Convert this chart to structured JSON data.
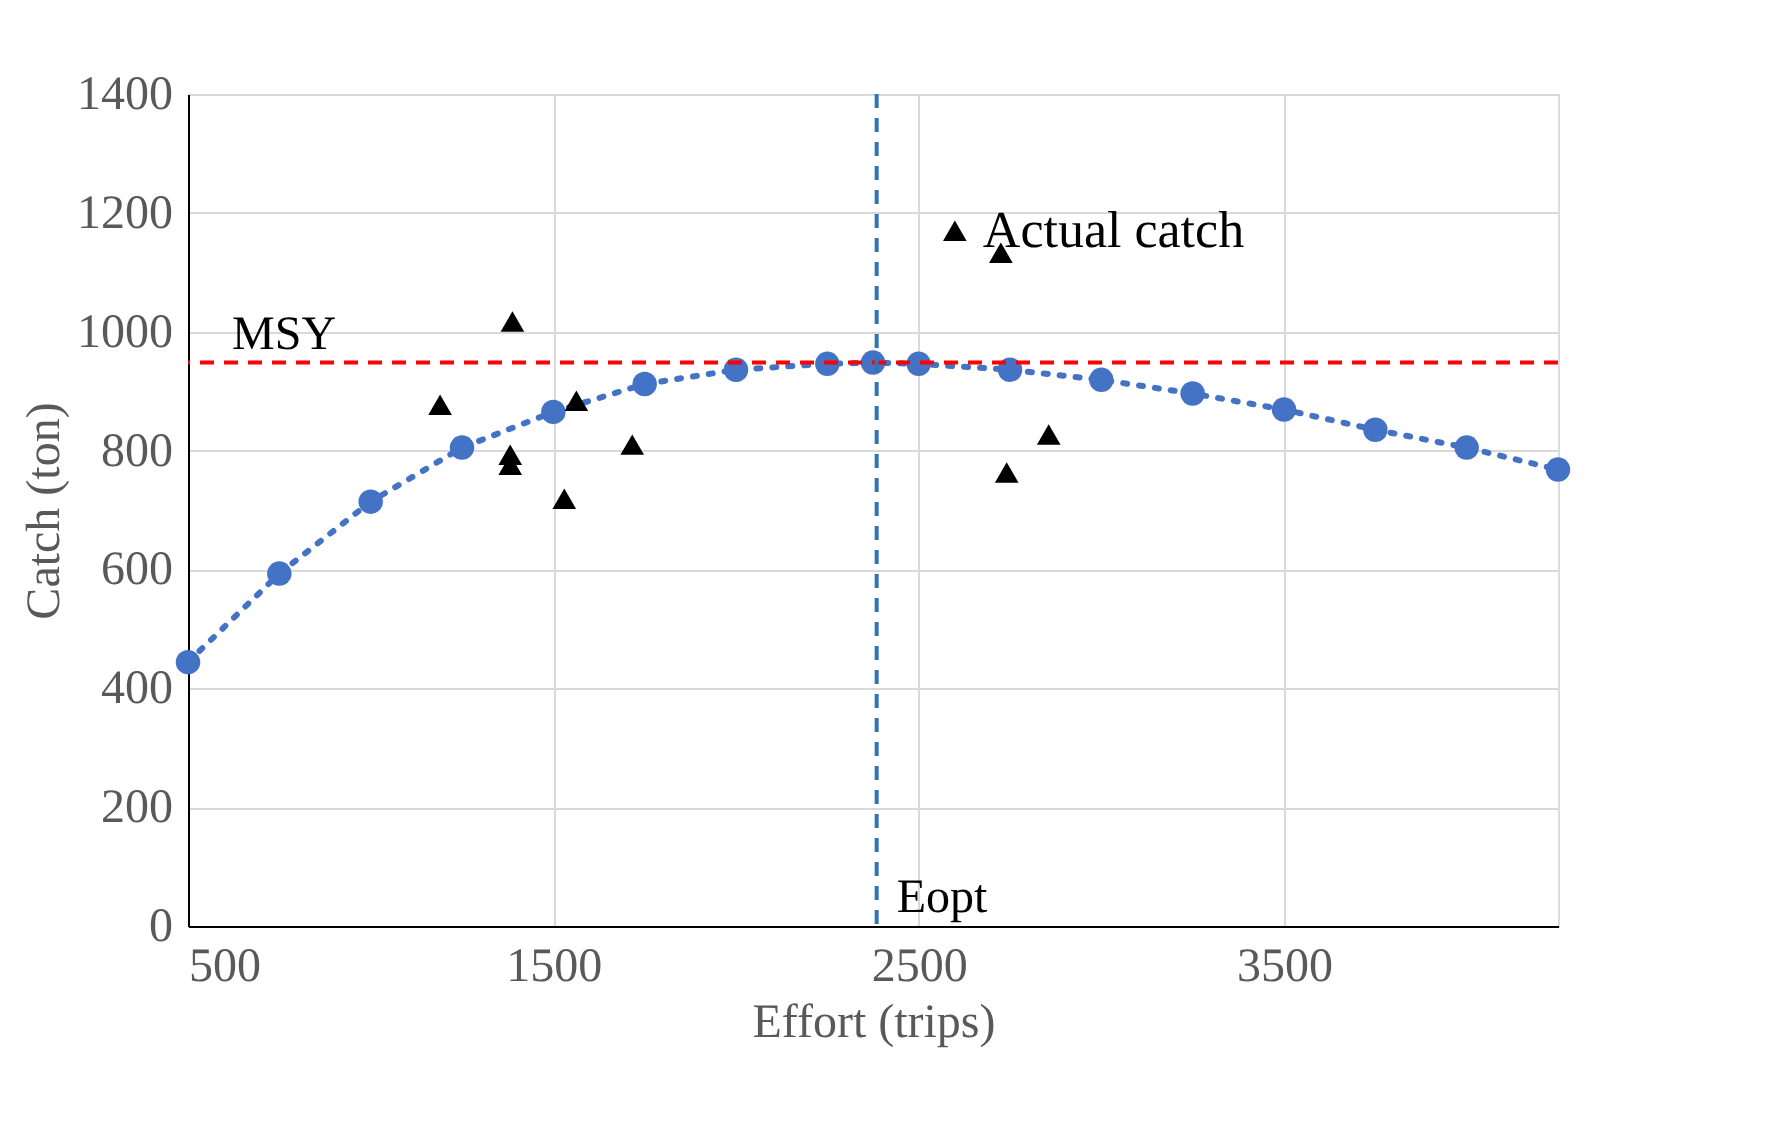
{
  "chart_data": {
    "type": "line",
    "xlabel": "Effort (trips)",
    "ylabel": "Catch (ton)",
    "xlim": [
      500,
      4250
    ],
    "xticks": [
      500,
      1500,
      2500,
      3500
    ],
    "ylim": [
      0,
      1400
    ],
    "yticks": [
      0,
      200,
      400,
      600,
      800,
      1000,
      1200,
      1400
    ],
    "grid": true,
    "series": [
      {
        "color": "#4472c4",
        "marker": "circle",
        "line_style": "dotted",
        "x": [
          500,
          750,
          1000,
          1250,
          1500,
          1750,
          2000,
          2250,
          2375,
          2500,
          2750,
          3000,
          3250,
          3500,
          3750,
          4000,
          4250
        ],
        "values": [
          444,
          593,
          714,
          805,
          865,
          912,
          936,
          946,
          948,
          946,
          936,
          919,
          896,
          869,
          835,
          805,
          768
        ]
      },
      {
        "type": "scatter",
        "name": "Actual catch",
        "color": "#000000",
        "marker": "triangle",
        "x": [
          1190,
          1388,
          1382,
          1382,
          1530,
          1563,
          1716,
          2599,
          2725,
          2741,
          2856
        ],
        "values": [
          877,
          1017,
          793,
          776,
          719,
          884,
          810,
          1170,
          1133,
          763,
          827
        ]
      }
    ],
    "ref_lines": [
      {
        "axis": "y",
        "value": 948,
        "label": "MSY",
        "color": "#ff0000",
        "line_style": "dashed"
      },
      {
        "axis": "x",
        "value": 2385,
        "label": "Eopt",
        "color": "#2e75b6",
        "line_style": "dashed"
      }
    ]
  }
}
